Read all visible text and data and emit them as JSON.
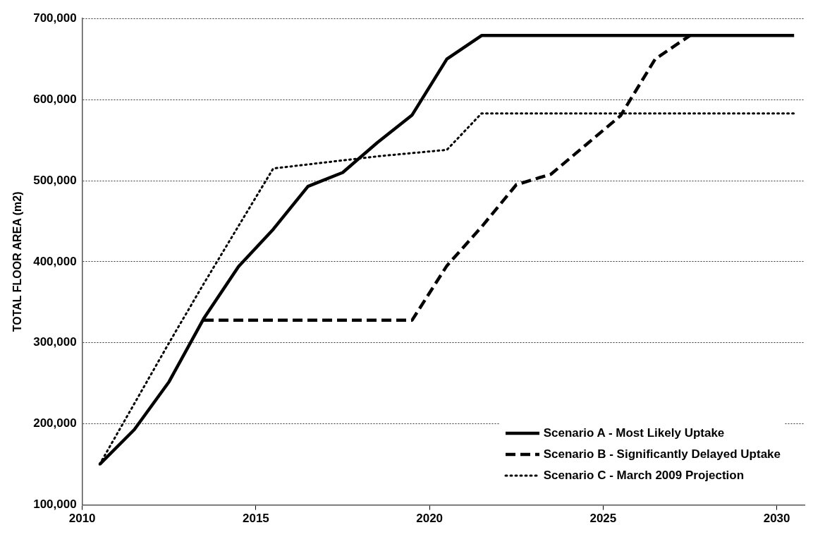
{
  "chart_data": {
    "type": "line",
    "ylabel": "TOTAL FLOOR AREA (m2)",
    "x": [
      2010.5,
      2011.5,
      2012.5,
      2013.5,
      2014.5,
      2015.5,
      2016.5,
      2017.5,
      2018.5,
      2019.5,
      2020.5,
      2021.5,
      2022.5,
      2023.5,
      2024.5,
      2025.5,
      2026.5,
      2027.5,
      2028.5,
      2029.5,
      2030.5
    ],
    "series": [
      {
        "name": "Scenario A - Most Likely Uptake",
        "color": "#000000",
        "line_style": "solid",
        "values": [
          150000,
          193000,
          252000,
          330000,
          394000,
          440000,
          493000,
          510000,
          547000,
          581000,
          650000,
          679000,
          679000,
          679000,
          679000,
          679000,
          679000,
          679000,
          679000,
          679000,
          679000
        ]
      },
      {
        "name": "Scenario B - Significantly Delayed Uptake",
        "color": "#000000",
        "line_style": "dashed",
        "values": [
          null,
          null,
          null,
          328000,
          328000,
          328000,
          328000,
          328000,
          328000,
          328000,
          395000,
          443000,
          495000,
          508000,
          544000,
          580000,
          650000,
          679000,
          null,
          null,
          null
        ]
      },
      {
        "name": "Scenario C - March 2009 Projection",
        "color": "#000000",
        "line_style": "dotted",
        "values": [
          150000,
          225000,
          300000,
          373000,
          444000,
          515000,
          520000,
          525000,
          530000,
          534000,
          538000,
          583000,
          583000,
          583000,
          583000,
          583000,
          583000,
          583000,
          583000,
          583000,
          583000
        ]
      }
    ],
    "xlim": [
      2010,
      2030.8
    ],
    "xticks": [
      2010,
      2015,
      2020,
      2025,
      2030
    ],
    "ylim": [
      100000,
      700000
    ],
    "yticks": [
      {
        "value": 100000,
        "label": "100,000"
      },
      {
        "value": 200000,
        "label": "200,000"
      },
      {
        "value": 300000,
        "label": "300,000"
      },
      {
        "value": 400000,
        "label": "400,000"
      },
      {
        "value": 500000,
        "label": "500,000"
      },
      {
        "value": 600000,
        "label": "600,000"
      },
      {
        "value": 700000,
        "label": "700,000"
      }
    ],
    "grid": "y",
    "legend": "bottom right",
    "marker": "none"
  }
}
